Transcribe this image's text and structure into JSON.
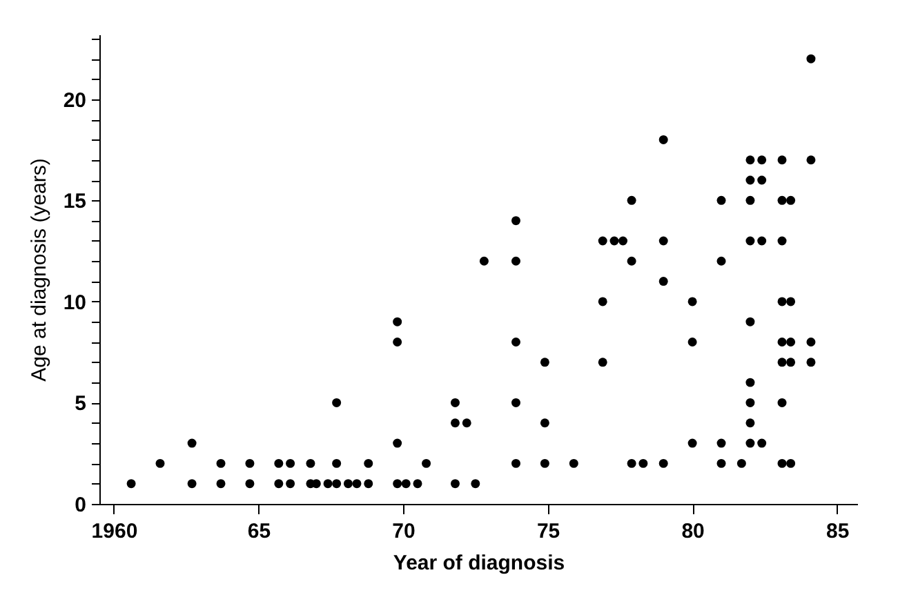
{
  "chart_data": {
    "type": "scatter",
    "xlabel": "Year of diagnosis",
    "ylabel": "Age at diagnosis (years)",
    "x": [
      1960.6,
      1961.6,
      1962.7,
      1962.7,
      1963.7,
      1963.7,
      1964.7,
      1964.7,
      1965.7,
      1965.7,
      1966.1,
      1966.1,
      1966.8,
      1966.8,
      1967.0,
      1967.4,
      1967.7,
      1967.7,
      1967.7,
      1968.1,
      1968.4,
      1968.8,
      1968.8,
      1969.8,
      1969.8,
      1969.8,
      1969.8,
      1970.1,
      1970.5,
      1970.8,
      1971.8,
      1971.8,
      1971.8,
      1972.2,
      1972.5,
      1972.8,
      1973.9,
      1973.9,
      1973.9,
      1973.9,
      1973.9,
      1974.9,
      1974.9,
      1974.9,
      1975.9,
      1976.9,
      1976.9,
      1976.9,
      1977.3,
      1977.6,
      1977.9,
      1977.9,
      1977.9,
      1978.3,
      1979.0,
      1979.0,
      1979.0,
      1979.0,
      1980.0,
      1980.0,
      1980.0,
      1981.0,
      1981.0,
      1981.0,
      1981.0,
      1981.7,
      1982.0,
      1982.0,
      1982.0,
      1982.0,
      1982.0,
      1982.0,
      1982.0,
      1982.0,
      1982.0,
      1982.4,
      1982.4,
      1982.4,
      1982.4,
      1983.1,
      1983.1,
      1983.1,
      1983.1,
      1983.1,
      1983.1,
      1983.1,
      1983.1,
      1983.4,
      1983.4,
      1983.4,
      1983.4,
      1983.4,
      1984.1,
      1984.1,
      1984.1,
      1984.1
    ],
    "series": [
      {
        "color": "#000000",
        "values": [
          1,
          2,
          3,
          1,
          2,
          1,
          2,
          1,
          2,
          1,
          2,
          1,
          2,
          1,
          1,
          1,
          5,
          2,
          1,
          1,
          1,
          2,
          1,
          9,
          8,
          3,
          1,
          1,
          1,
          2,
          5,
          4,
          1,
          4,
          1,
          12,
          14,
          12,
          8,
          5,
          2,
          7,
          4,
          2,
          2,
          13,
          10,
          7,
          13,
          13,
          15,
          12,
          2,
          2,
          18,
          13,
          11,
          2,
          10,
          8,
          3,
          15,
          12,
          3,
          2,
          2,
          17,
          16,
          15,
          13,
          9,
          6,
          5,
          4,
          3,
          17,
          16,
          13,
          3,
          17,
          15,
          13,
          10,
          8,
          7,
          5,
          2,
          15,
          10,
          8,
          7,
          2,
          22,
          17,
          8,
          7
        ]
      }
    ],
    "xlim": [
      1959.5,
      1985.7
    ],
    "ylim": [
      0,
      23.2
    ],
    "xticks": [
      1960,
      {
        "value": 1965,
        "label": "65"
      },
      {
        "value": 1970,
        "label": "70"
      },
      {
        "value": 1975,
        "label": "75"
      },
      {
        "value": 1980,
        "label": "80"
      },
      {
        "value": 1985,
        "label": "85"
      }
    ],
    "yticks": [
      0,
      {
        "value": 1,
        "label": null
      },
      {
        "value": 2,
        "label": null
      },
      {
        "value": 3,
        "label": null
      },
      {
        "value": 4,
        "label": null
      },
      5,
      {
        "value": 6,
        "label": null
      },
      {
        "value": 7,
        "label": null
      },
      {
        "value": 8,
        "label": null
      },
      {
        "value": 9,
        "label": null
      },
      10,
      {
        "value": 11,
        "label": null
      },
      {
        "value": 12,
        "label": null
      },
      {
        "value": 13,
        "label": null
      },
      {
        "value": 14,
        "label": null
      },
      15,
      {
        "value": 16,
        "label": null
      },
      {
        "value": 17,
        "label": null
      },
      {
        "value": 18,
        "label": null
      },
      {
        "value": 19,
        "label": null
      },
      20,
      {
        "value": 21,
        "label": null
      },
      {
        "value": 22,
        "label": null
      },
      {
        "value": 23,
        "label": null
      }
    ],
    "grid": false,
    "legend": false,
    "marker": "circle"
  }
}
